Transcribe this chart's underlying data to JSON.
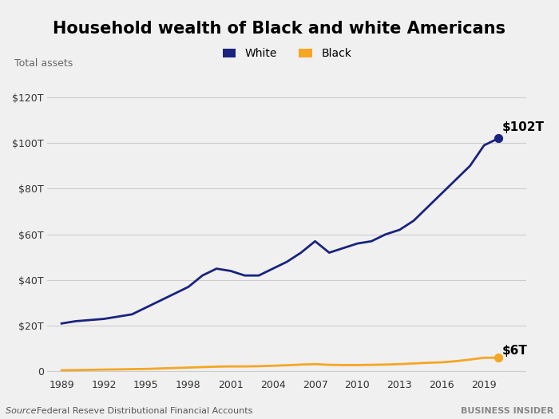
{
  "title": "Household wealth of Black and white Americans",
  "ylabel": "Total assets",
  "source_label": "Source: ",
  "source_text": "Federal Reseve Distributional Financial Accounts",
  "watermark": "BUSINESS INSIDER",
  "background_color": "#f0f0f0",
  "white_color": "#1a237e",
  "black_color": "#f5a623",
  "yticks": [
    0,
    20,
    40,
    60,
    80,
    100,
    120
  ],
  "xticks": [
    1989,
    1992,
    1995,
    1998,
    2001,
    2004,
    2007,
    2010,
    2013,
    2016,
    2019
  ],
  "white_label": "$102T",
  "black_label": "$6T",
  "white_years": [
    1989,
    1990,
    1991,
    1992,
    1993,
    1994,
    1995,
    1996,
    1997,
    1998,
    1999,
    2000,
    2001,
    2002,
    2003,
    2004,
    2005,
    2006,
    2007,
    2008,
    2009,
    2010,
    2011,
    2012,
    2013,
    2014,
    2015,
    2016,
    2017,
    2018,
    2019,
    2020
  ],
  "white_values": [
    21,
    22,
    22.5,
    23,
    24,
    25,
    28,
    31,
    34,
    37,
    42,
    45,
    44,
    42,
    42,
    45,
    48,
    52,
    57,
    52,
    54,
    56,
    57,
    60,
    62,
    66,
    72,
    78,
    84,
    90,
    99,
    102
  ],
  "black_years": [
    1989,
    1990,
    1991,
    1992,
    1993,
    1994,
    1995,
    1996,
    1997,
    1998,
    1999,
    2000,
    2001,
    2002,
    2003,
    2004,
    2005,
    2006,
    2007,
    2008,
    2009,
    2010,
    2011,
    2012,
    2013,
    2014,
    2015,
    2016,
    2017,
    2018,
    2019,
    2020
  ],
  "black_values": [
    0.5,
    0.6,
    0.7,
    0.8,
    0.9,
    1.0,
    1.1,
    1.3,
    1.5,
    1.7,
    1.9,
    2.1,
    2.2,
    2.2,
    2.3,
    2.5,
    2.7,
    3.0,
    3.2,
    2.9,
    2.8,
    2.8,
    2.9,
    3.0,
    3.2,
    3.5,
    3.8,
    4.0,
    4.5,
    5.2,
    6.0,
    6.0
  ]
}
